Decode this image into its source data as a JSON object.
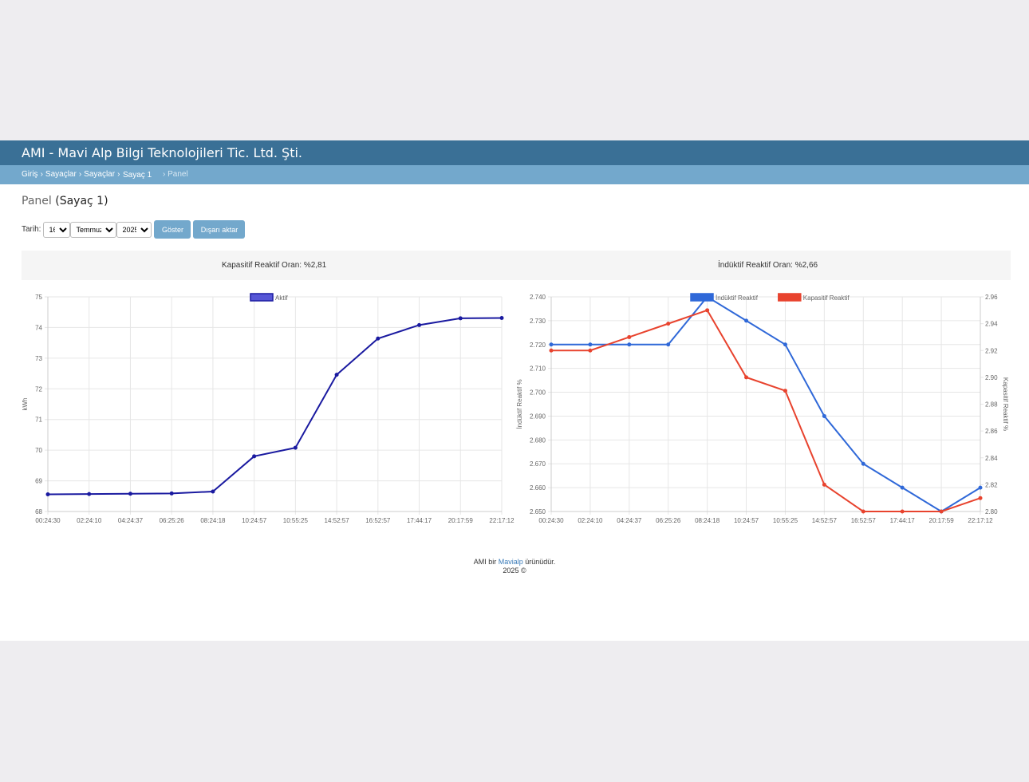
{
  "header": {
    "title": "AMI - Mavi Alp Bilgi Teknolojileri Tic. Ltd. Şti."
  },
  "breadcrumb": {
    "items": [
      "Giriş",
      "Sayaçlar",
      "Sayaçlar"
    ],
    "separator": "›",
    "current": "Sayaç 1",
    "last": "› Panel"
  },
  "page": {
    "title": "Panel",
    "subtitle": "(Sayaç 1)"
  },
  "filters": {
    "label": "Tarih:",
    "day": "16",
    "month": "Temmuz",
    "year": "2025",
    "show_label": "Göster",
    "export_label": "Dışarı aktar"
  },
  "ratios": {
    "capacitive": "Kapasitif Reaktif Oran: %2,81",
    "inductive": "İndüktif Reaktif Oran: %2,66"
  },
  "colors": {
    "header": "#3a7096",
    "breadcrumb": "#73a8cc",
    "active": "#1a1aa0",
    "inductive": "#2f68d8",
    "capacitive": "#e8432e"
  },
  "chart_data": [
    {
      "type": "line",
      "title": "",
      "legend": [
        "Aktif"
      ],
      "xlabel": "",
      "ylabel": "kWh",
      "ylim": [
        68,
        75
      ],
      "yticks": [
        68,
        69,
        70,
        71,
        72,
        73,
        74,
        75
      ],
      "categories": [
        "00:24:30",
        "02:24:10",
        "04:24:37",
        "06:25:26",
        "08:24:18",
        "10:24:57",
        "10:55:25",
        "14:52:57",
        "16:52:57",
        "17:44:17",
        "20:17:59",
        "22:17:12"
      ],
      "series": [
        {
          "name": "Aktif",
          "values": [
            68.56,
            68.57,
            68.58,
            68.59,
            68.65,
            69.8,
            70.08,
            72.46,
            73.64,
            74.08,
            74.3,
            74.31
          ]
        }
      ],
      "grid": true
    },
    {
      "type": "line",
      "title": "",
      "legend": [
        "İndüktif Reaktif",
        "Kapasitif Reaktif"
      ],
      "ylabel": "İndüktif Reaktif %",
      "y2label": "Kapasitif Reaktif %",
      "ylim": [
        2.65,
        2.74
      ],
      "yticks": [
        "2.650",
        "2.660",
        "2.670",
        "2.680",
        "2.690",
        "2.700",
        "2.710",
        "2.720",
        "2.730",
        "2.740"
      ],
      "y2lim": [
        2.8,
        2.96
      ],
      "y2ticks": [
        "2.80",
        "2.82",
        "2.84",
        "2.86",
        "2.88",
        "2.90",
        "2.92",
        "2.94",
        "2.96"
      ],
      "categories": [
        "00:24:30",
        "02:24:10",
        "04:24:37",
        "06:25:26",
        "08:24:18",
        "10:24:57",
        "10:55:25",
        "14:52:57",
        "16:52:57",
        "17:44:17",
        "20:17:59",
        "22:17:12"
      ],
      "series": [
        {
          "name": "İndüktif Reaktif",
          "axis": "left",
          "values": [
            2.72,
            2.72,
            2.72,
            2.72,
            2.74,
            2.73,
            2.72,
            2.69,
            2.67,
            2.66,
            2.65,
            2.66
          ]
        },
        {
          "name": "Kapasitif Reaktif",
          "axis": "right",
          "values": [
            2.92,
            2.92,
            2.93,
            2.94,
            2.95,
            2.9,
            2.89,
            2.82,
            2.8,
            2.8,
            2.8,
            2.81
          ]
        }
      ],
      "grid": true
    }
  ],
  "footer": {
    "prefix": "AMI bir",
    "brand": "Mavialp",
    "suffix": "ürünüdür.",
    "year": "2025 ©"
  }
}
